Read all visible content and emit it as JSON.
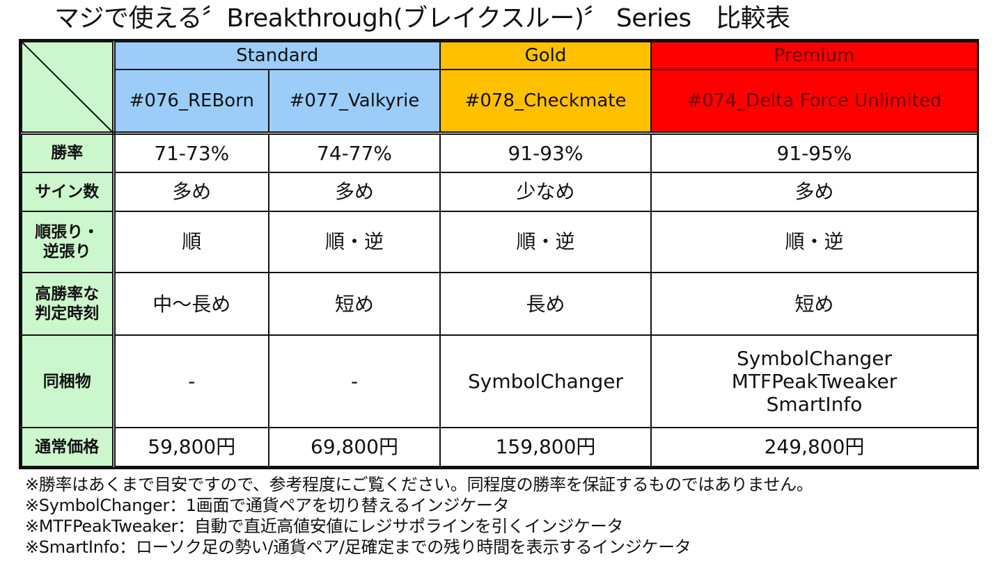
{
  "title": "マジで使える〞Breakthrough(ブレイクスルー)〞 Series　比較表",
  "groups": {
    "standard": "Standard",
    "gold": "Gold",
    "premium": "Premium"
  },
  "colors": {
    "standard": "#9bcdf8",
    "gold": "#ffc000",
    "premium": "#ff0000",
    "row_header": "#ccf6cc"
  },
  "products": [
    "#076_REBorn",
    "#077_Valkyrie",
    "#078_Checkmate",
    "#074_Delta Force Unlimited"
  ],
  "rows": [
    {
      "label": "勝率",
      "values": [
        "71-73%",
        "74-77%",
        "91-93%",
        "91-95%"
      ]
    },
    {
      "label": "サイン数",
      "values": [
        "多め",
        "多め",
        "少なめ",
        "多め"
      ]
    },
    {
      "label_line1": "順張り・",
      "label_line2": "逆張り",
      "values": [
        "順",
        "順・逆",
        "順・逆",
        "順・逆"
      ]
    },
    {
      "label_line1": "高勝率な",
      "label_line2": "判定時刻",
      "values": [
        "中～長め",
        "短め",
        "長め",
        "短め"
      ]
    },
    {
      "label": "同梱物",
      "values": [
        "-",
        "-",
        "SymbolChanger"
      ],
      "premium_lines": [
        "SymbolChanger",
        "MTFPeakTweaker",
        "SmartInfo"
      ]
    },
    {
      "label": "通常価格",
      "values": [
        "59,800円",
        "69,800円",
        "159,800円",
        "249,800円"
      ]
    }
  ],
  "notes": [
    "※勝率はあくまで目安ですので、参考程度にご覧ください。同程度の勝率を保証するものではありません。",
    "※SymbolChanger：1画面で通貨ペアを切り替えるインジケータ",
    "※MTFPeakTweaker：自動で直近高値安値にレジサポラインを引くインジケータ",
    "※SmartInfo：ローソク足の勢い/通貨ペア/足確定までの残り時間を表示するインジケータ"
  ]
}
